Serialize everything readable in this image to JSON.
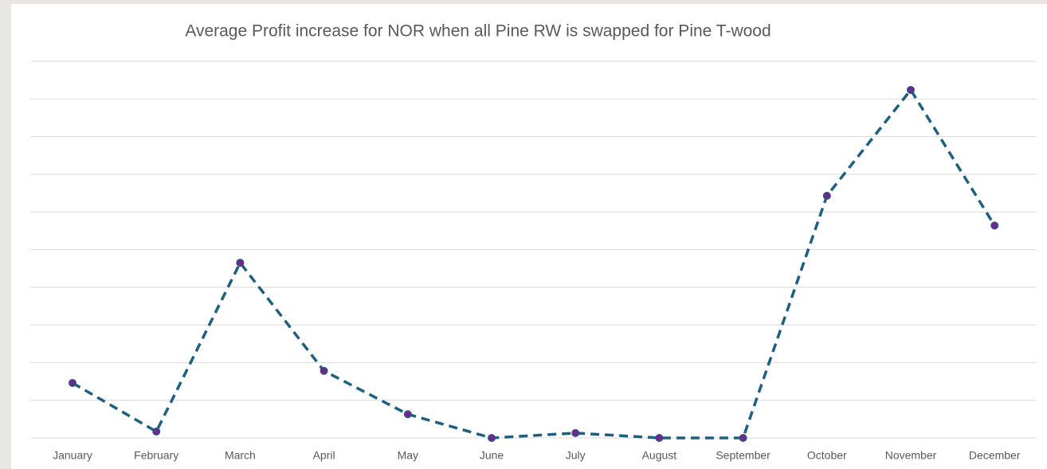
{
  "chart_data": {
    "type": "line",
    "title": "Average Profit increase for NOR when all Pine RW is swapped for Pine T-wood",
    "categories": [
      "January",
      "February",
      "March",
      "April",
      "May",
      "June",
      "July",
      "August",
      "September",
      "October",
      "November",
      "December"
    ],
    "series": [
      {
        "color": "#1f5f7f",
        "marker_color": "#6b2a8c",
        "values": [
          1.46,
          0.17,
          4.65,
          1.78,
          0.63,
          0,
          0.13,
          0,
          0,
          6.43,
          9.24,
          5.64
        ]
      }
    ],
    "ylim": [
      0,
      10
    ],
    "yticks": [
      0,
      1,
      2,
      3,
      4,
      5,
      6,
      7,
      8,
      9,
      10
    ],
    "grid": true
  }
}
